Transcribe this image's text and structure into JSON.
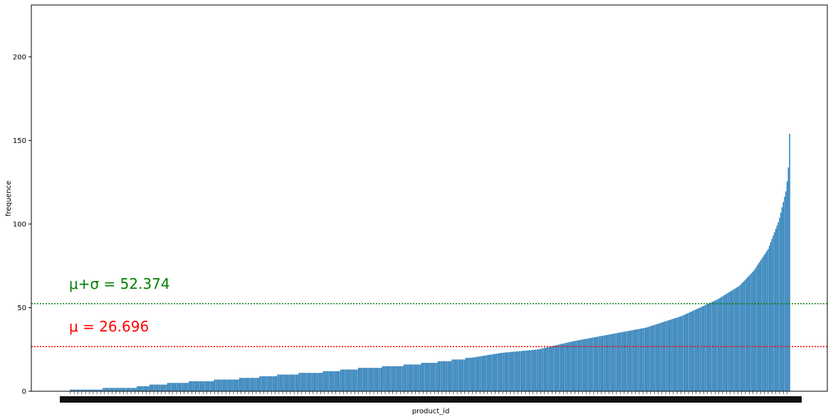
{
  "chart_data": {
    "type": "bar",
    "xlabel": "product_id",
    "ylabel": "frequence",
    "ylim": [
      0,
      231
    ],
    "yticks": [
      0,
      50,
      100,
      150,
      200
    ],
    "bar_color": "#1f77b4",
    "bar_count": 570,
    "tick_labels_visible": "overlapping, illegible",
    "profile": [
      [
        0,
        1
      ],
      [
        0.04,
        1
      ],
      [
        0.05,
        2
      ],
      [
        0.085,
        2
      ],
      [
        0.1,
        3
      ],
      [
        0.12,
        4
      ],
      [
        0.15,
        5
      ],
      [
        0.18,
        6
      ],
      [
        0.22,
        7
      ],
      [
        0.25,
        8
      ],
      [
        0.3,
        10
      ],
      [
        0.35,
        11.5
      ],
      [
        0.4,
        13.5
      ],
      [
        0.45,
        15
      ],
      [
        0.5,
        17
      ],
      [
        0.55,
        19.5
      ],
      [
        0.6,
        23
      ],
      [
        0.65,
        25
      ],
      [
        0.7,
        30
      ],
      [
        0.75,
        34
      ],
      [
        0.8,
        38
      ],
      [
        0.85,
        45
      ],
      [
        0.9,
        55
      ],
      [
        0.93,
        63
      ],
      [
        0.95,
        72
      ],
      [
        0.97,
        85
      ],
      [
        0.985,
        102
      ],
      [
        0.995,
        120
      ],
      [
        0.998,
        131
      ],
      [
        1.0,
        154
      ]
    ],
    "reference_lines": [
      {
        "label": "μ+σ = 52.374",
        "value": 52.374,
        "color": "#008000",
        "style": "dotted"
      },
      {
        "label": "μ = 26.696",
        "value": 26.696,
        "color": "#ff0000",
        "style": "dotted"
      }
    ],
    "grid": false,
    "legend": "none"
  }
}
